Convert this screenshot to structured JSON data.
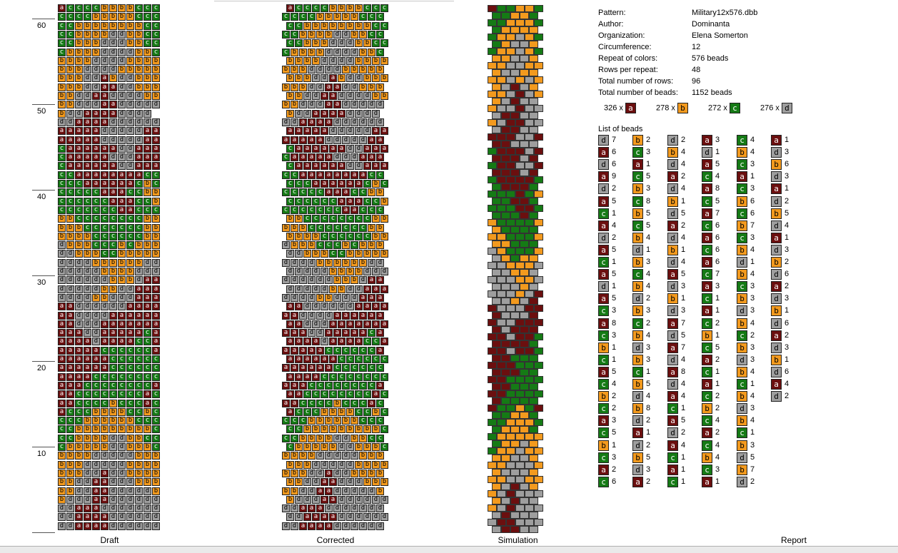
{
  "colors": {
    "a": "#6b0f0f",
    "b": "#f39a1e",
    "c": "#157a15",
    "d": "#9e9e9e"
  },
  "text_colors": {
    "a": "#ffffff",
    "b": "#000000",
    "c": "#ffffff",
    "d": "#000000"
  },
  "ruler": {
    "labels": [
      "60",
      "50",
      "40",
      "30",
      "20",
      "10"
    ]
  },
  "draft_rows": [
    "accccbbbbccc",
    "ccccbbbbbccc",
    "ccbbbbbbbbcc",
    "ccbbbbddbbcc",
    "ccbbbdddbbcc",
    "cbbbbddddbbc",
    "bbbbddddbbbb",
    "bbbddddbbbbb",
    "bbbddabddbbb",
    "bbbddaaddbbb",
    "bbddaaddddbb",
    "bbdddaaddddd",
    "bddaaaadddd",
    "ddaaaadddddd",
    "aaaaadddddaa",
    "aaaaadddddaa",
    "caaaaaaddaaa",
    "caaaaadddaaa",
    "caaaaaaddaaa",
    "ccaaaaaaaacc",
    "cccaaaaaacbc",
    "cccccaaaccbb",
    "ccccccaaaccb",
    "cccccccaaccc",
    "bbccccccccbb",
    "bbbcccccccbb",
    "bbbbccccccbb",
    "dbbbcccbcbbb",
    "ddbbbccbbbbb",
    "ddddbbbbbbdd",
    "dddddbbbbddd",
    "ddddddbbbdaa",
    "dddddbbddaaa",
    "ddddbbdddaaa",
    "aaddddddaaaa",
    "aaddddaaaaaa",
    "aadddaaaaaaa",
    "aaaddaaaaaca",
    "aaaadaaaacca",
    "aaaaacccccca",
    "aaaaaacccccc",
    "aaaaaacccccc",
    "aaaacccccccc",
    "aaacccccccca",
    "aaccccccccac",
    "aaccccbcccac",
    "acccbbbbccbc",
    "cccbbbbbbccc",
    "ccbbbbbbbbbc",
    "ccbbbbddbbcc",
    "cbbbbbddbbbc",
    "bbbbdddddbbb",
    "bbbdddddbbbb",
    "bbbddaddbbbb",
    "bbddaadddbbb",
    "bbddaadddddb",
    "bdddaadddddd",
    "ddaaaddddddd",
    "ddaaaadddddd",
    "ddaaaadddddd"
  ],
  "sim_palette": [
    "#f39a1e",
    "#157a15",
    "#6b0f0f",
    "#9e9e9e"
  ],
  "captions": {
    "draft": "Draft",
    "corrected": "Corrected",
    "simulation": "Simulation",
    "report": "Report"
  },
  "info": [
    {
      "k": "Pattern:",
      "v": "Military12x576.dbb"
    },
    {
      "k": "Author:",
      "v": "Dominanta"
    },
    {
      "k": "Organization:",
      "v": "Elena Somerton"
    },
    {
      "k": "Circumference:",
      "v": "12"
    },
    {
      "k": "Repeat of colors:",
      "v": "576 beads"
    },
    {
      "k": "Rows per repeat:",
      "v": "48"
    },
    {
      "k": "Total number of rows:",
      "v": "96"
    },
    {
      "k": "Total number of beads:",
      "v": "1152 beads"
    }
  ],
  "counts": [
    {
      "label": "326 x",
      "letter": "a"
    },
    {
      "label": "278 x",
      "letter": "b"
    },
    {
      "label": "272 x",
      "letter": "c"
    },
    {
      "label": "276 x",
      "letter": "d"
    }
  ],
  "list_title": "List of beads",
  "bead_list": [
    [
      [
        "d",
        "7"
      ],
      [
        "a",
        "6"
      ],
      [
        "d",
        "6"
      ],
      [
        "a",
        "9"
      ],
      [
        "d",
        "2"
      ],
      [
        "a",
        "5"
      ],
      [
        "c",
        "1"
      ],
      [
        "a",
        "4"
      ],
      [
        "d",
        "2"
      ],
      [
        "a",
        "5"
      ],
      [
        "c",
        "1"
      ],
      [
        "a",
        "5"
      ],
      [
        "d",
        "1"
      ],
      [
        "a",
        "5"
      ],
      [
        "c",
        "3"
      ],
      [
        "a",
        "8"
      ],
      [
        "c",
        "3"
      ],
      [
        "b",
        "1"
      ],
      [
        "c",
        "1"
      ],
      [
        "a",
        "5"
      ],
      [
        "c",
        "4"
      ],
      [
        "b",
        "2"
      ],
      [
        "c",
        "2"
      ],
      [
        "a",
        "3"
      ],
      [
        "c",
        "5"
      ],
      [
        "b",
        "1"
      ],
      [
        "c",
        "3"
      ],
      [
        "a",
        "2"
      ],
      [
        "c",
        "6"
      ]
    ],
    [
      [
        "b",
        "2"
      ],
      [
        "c",
        "3"
      ],
      [
        "a",
        "1"
      ],
      [
        "c",
        "5"
      ],
      [
        "b",
        "3"
      ],
      [
        "c",
        "8"
      ],
      [
        "b",
        "5"
      ],
      [
        "c",
        "5"
      ],
      [
        "b",
        "4"
      ],
      [
        "d",
        "1"
      ],
      [
        "b",
        "3"
      ],
      [
        "c",
        "4"
      ],
      [
        "b",
        "4"
      ],
      [
        "d",
        "2"
      ],
      [
        "b",
        "3"
      ],
      [
        "c",
        "2"
      ],
      [
        "b",
        "4"
      ],
      [
        "d",
        "3"
      ],
      [
        "b",
        "3"
      ],
      [
        "c",
        "1"
      ],
      [
        "b",
        "5"
      ],
      [
        "d",
        "4"
      ],
      [
        "b",
        "8"
      ],
      [
        "d",
        "2"
      ],
      [
        "a",
        "1"
      ],
      [
        "d",
        "2"
      ],
      [
        "b",
        "5"
      ],
      [
        "d",
        "3"
      ],
      [
        "a",
        "2"
      ]
    ],
    [
      [
        "d",
        "2"
      ],
      [
        "b",
        "4"
      ],
      [
        "d",
        "4"
      ],
      [
        "a",
        "2"
      ],
      [
        "d",
        "4"
      ],
      [
        "b",
        "1"
      ],
      [
        "d",
        "5"
      ],
      [
        "a",
        "2"
      ],
      [
        "d",
        "4"
      ],
      [
        "b",
        "1"
      ],
      [
        "d",
        "4"
      ],
      [
        "a",
        "5"
      ],
      [
        "d",
        "3"
      ],
      [
        "b",
        "1"
      ],
      [
        "d",
        "3"
      ],
      [
        "a",
        "7"
      ],
      [
        "d",
        "5"
      ],
      [
        "a",
        "7"
      ],
      [
        "d",
        "4"
      ],
      [
        "a",
        "8"
      ],
      [
        "d",
        "4"
      ],
      [
        "a",
        "4"
      ],
      [
        "c",
        "1"
      ],
      [
        "a",
        "5"
      ],
      [
        "d",
        "2"
      ],
      [
        "a",
        "4"
      ],
      [
        "c",
        "1"
      ],
      [
        "a",
        "1"
      ],
      [
        "c",
        "1"
      ]
    ],
    [
      [
        "a",
        "3"
      ],
      [
        "d",
        "1"
      ],
      [
        "a",
        "5"
      ],
      [
        "c",
        "4"
      ],
      [
        "a",
        "8"
      ],
      [
        "c",
        "5"
      ],
      [
        "a",
        "7"
      ],
      [
        "c",
        "6"
      ],
      [
        "a",
        "6"
      ],
      [
        "c",
        "6"
      ],
      [
        "a",
        "6"
      ],
      [
        "c",
        "7"
      ],
      [
        "a",
        "3"
      ],
      [
        "c",
        "1"
      ],
      [
        "a",
        "1"
      ],
      [
        "c",
        "2"
      ],
      [
        "b",
        "1"
      ],
      [
        "c",
        "5"
      ],
      [
        "a",
        "2"
      ],
      [
        "c",
        "1"
      ],
      [
        "a",
        "1"
      ],
      [
        "c",
        "2"
      ],
      [
        "b",
        "2"
      ],
      [
        "c",
        "4"
      ],
      [
        "a",
        "2"
      ],
      [
        "c",
        "4"
      ],
      [
        "b",
        "4"
      ],
      [
        "c",
        "3"
      ],
      [
        "a",
        "1"
      ]
    ],
    [
      [
        "c",
        "4"
      ],
      [
        "b",
        "4"
      ],
      [
        "c",
        "3"
      ],
      [
        "a",
        "1"
      ],
      [
        "c",
        "3"
      ],
      [
        "b",
        "6"
      ],
      [
        "c",
        "6"
      ],
      [
        "b",
        "7"
      ],
      [
        "c",
        "3"
      ],
      [
        "b",
        "4"
      ],
      [
        "d",
        "1"
      ],
      [
        "b",
        "4"
      ],
      [
        "c",
        "3"
      ],
      [
        "b",
        "3"
      ],
      [
        "d",
        "3"
      ],
      [
        "b",
        "4"
      ],
      [
        "c",
        "2"
      ],
      [
        "b",
        "3"
      ],
      [
        "d",
        "3"
      ],
      [
        "b",
        "4"
      ],
      [
        "c",
        "1"
      ],
      [
        "b",
        "4"
      ],
      [
        "d",
        "3"
      ],
      [
        "b",
        "4"
      ],
      [
        "c",
        "1"
      ],
      [
        "b",
        "3"
      ],
      [
        "d",
        "5"
      ],
      [
        "b",
        "7"
      ],
      [
        "d",
        "2"
      ]
    ],
    [
      [
        "a",
        "1"
      ],
      [
        "d",
        "3"
      ],
      [
        "b",
        "6"
      ],
      [
        "d",
        "3"
      ],
      [
        "a",
        "1"
      ],
      [
        "d",
        "2"
      ],
      [
        "b",
        "5"
      ],
      [
        "d",
        "4"
      ],
      [
        "a",
        "1"
      ],
      [
        "d",
        "3"
      ],
      [
        "b",
        "2"
      ],
      [
        "d",
        "6"
      ],
      [
        "a",
        "2"
      ],
      [
        "d",
        "3"
      ],
      [
        "b",
        "1"
      ],
      [
        "d",
        "6"
      ],
      [
        "a",
        "2"
      ],
      [
        "d",
        "3"
      ],
      [
        "b",
        "1"
      ],
      [
        "d",
        "6"
      ],
      [
        "a",
        "4"
      ],
      [
        "d",
        "2"
      ]
    ]
  ]
}
